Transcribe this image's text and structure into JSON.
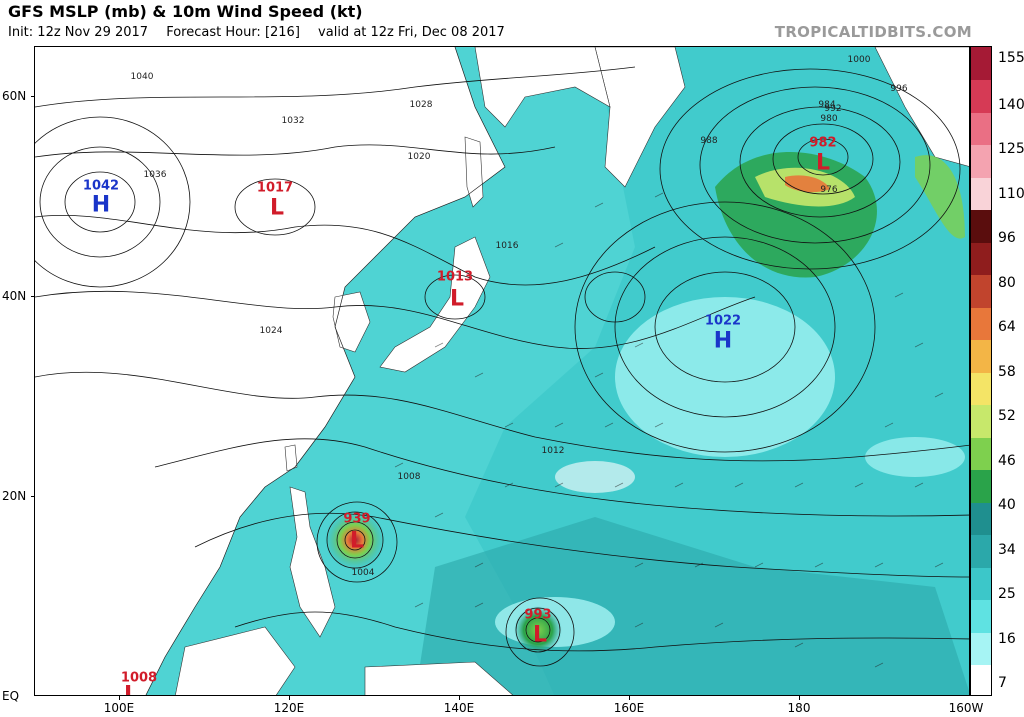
{
  "header": {
    "title": "GFS MSLP (mb) & 10m Wind Speed (kt)",
    "init": "Init: 12z Nov 29 2017",
    "forecast_hour": "Forecast Hour: [216]",
    "valid": "valid at 12z Fri, Dec 08 2017",
    "brand": "TROPICALTIDBITS.COM"
  },
  "axes": {
    "y_labels": [
      "60N",
      "40N",
      "20N",
      "EQ"
    ],
    "x_labels": [
      "100E",
      "120E",
      "140E",
      "160E",
      "180",
      "160W"
    ]
  },
  "colorbar": {
    "labels": [
      "155",
      "140",
      "125",
      "110",
      "96",
      "80",
      "64",
      "58",
      "52",
      "46",
      "40",
      "34",
      "25",
      "16",
      "7"
    ],
    "colors": [
      "#ffffff",
      "#a6f4f4",
      "#5fe2e2",
      "#3cc7c9",
      "#2ba8aa",
      "#1f8f8f",
      "#2aa34a",
      "#7ed04e",
      "#c7e86b",
      "#f4e466",
      "#f3b546",
      "#e8773a",
      "#c1442d",
      "#8f1d1d",
      "#5a0d0d",
      "#f9d3d8",
      "#f4a3b0",
      "#ea6f84",
      "#d63a55",
      "#a51a35"
    ]
  },
  "centers": [
    {
      "type": "H",
      "value": "1042",
      "color": "#1a35c9"
    },
    {
      "type": "L",
      "value": "1017",
      "color": "#d11c2a"
    },
    {
      "type": "L",
      "value": "1013",
      "color": "#d11c2a"
    },
    {
      "type": "L",
      "value": "982",
      "color": "#d11c2a"
    },
    {
      "type": "H",
      "value": "1022",
      "color": "#1a35c9"
    },
    {
      "type": "L",
      "value": "939",
      "color": "#d11c2a"
    },
    {
      "type": "L",
      "value": "993",
      "color": "#d11c2a"
    },
    {
      "type": "L",
      "value": "1008",
      "color": "#d11c2a"
    }
  ],
  "isobar_labels": [
    "1040",
    "1036",
    "1032",
    "1028",
    "1024",
    "1020",
    "1016",
    "1012",
    "1008",
    "1004",
    "1000",
    "996",
    "992",
    "988",
    "984",
    "980",
    "976"
  ],
  "colors": {
    "land": "#ffffff",
    "ocean_fill": "#4fd3d3",
    "isobar": "#111111",
    "high": "#1a35c9",
    "low": "#d11c2a"
  }
}
